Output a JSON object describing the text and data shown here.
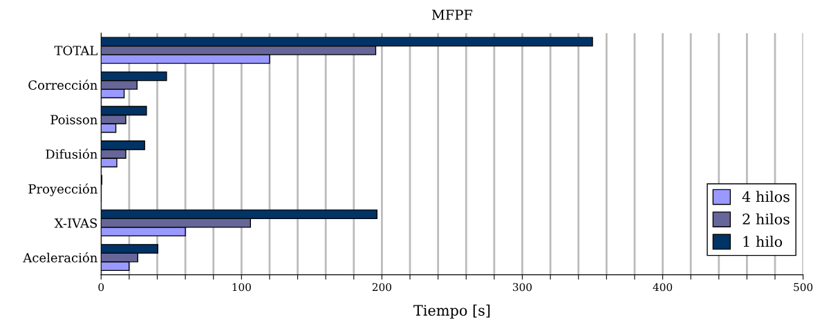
{
  "chart_data": {
    "type": "bar",
    "orientation": "horizontal",
    "title": "MFPF",
    "xlabel": "Tiempo [s]",
    "categories": [
      "TOTAL",
      "Corrección",
      "Poisson",
      "Difusión",
      "Proyección",
      "X-IVAS",
      "Aceleración"
    ],
    "series": [
      {
        "name": "4 hilos",
        "color": "#9999ff",
        "values": [
          120,
          16.4,
          10.5,
          11.2,
          null,
          60,
          19.9
        ]
      },
      {
        "name": "2 hilos",
        "color": "#666699",
        "values": [
          195.6,
          25.6,
          17.6,
          17.6,
          null,
          106.4,
          26.1
        ]
      },
      {
        "name": "1 hilo",
        "color": "#003366",
        "values": [
          350,
          46.6,
          32.3,
          31,
          0.5,
          196.5,
          40.4
        ]
      }
    ],
    "xlim": [
      0,
      500
    ],
    "xticks": [
      0,
      {
        "value": 20,
        "label": null
      },
      {
        "value": 40,
        "label": null
      },
      {
        "value": 60,
        "label": null
      },
      {
        "value": 80,
        "label": null
      },
      100,
      {
        "value": 120,
        "label": null
      },
      {
        "value": 140,
        "label": null
      },
      {
        "value": 160,
        "label": null
      },
      {
        "value": 180,
        "label": null
      },
      200,
      {
        "value": 220,
        "label": null
      },
      {
        "value": 240,
        "label": null
      },
      {
        "value": 260,
        "label": null
      },
      {
        "value": 280,
        "label": null
      },
      300,
      {
        "value": 320,
        "label": null
      },
      {
        "value": 340,
        "label": null
      },
      {
        "value": 360,
        "label": null
      },
      {
        "value": 380,
        "label": null
      },
      400,
      {
        "value": 420,
        "label": null
      },
      {
        "value": 440,
        "label": null
      },
      {
        "value": 460,
        "label": null
      },
      {
        "value": 480,
        "label": null
      },
      500
    ],
    "grid": "x",
    "legend": "bottom right"
  }
}
